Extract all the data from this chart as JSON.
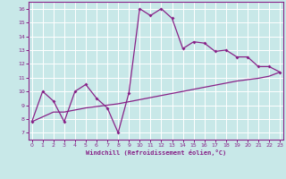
{
  "xlabel": "Windchill (Refroidissement éolien,°C)",
  "background_color": "#c8e8e8",
  "line_color": "#882288",
  "grid_color": "#ffffff",
  "x_data": [
    0,
    1,
    2,
    3,
    4,
    5,
    6,
    7,
    8,
    9,
    10,
    11,
    12,
    13,
    14,
    15,
    16,
    17,
    18,
    19,
    20,
    21,
    22,
    23
  ],
  "upper_line_y": [
    7.8,
    10.0,
    9.3,
    7.8,
    10.0,
    10.5,
    9.5,
    8.8,
    7.0,
    9.9,
    16.0,
    15.5,
    16.0,
    15.3,
    13.1,
    13.6,
    13.5,
    12.9,
    13.0,
    12.5,
    12.5,
    11.8,
    11.8,
    11.4
  ],
  "lower_line_y": [
    7.8,
    8.15,
    8.5,
    8.5,
    8.65,
    8.8,
    8.9,
    9.0,
    9.1,
    9.25,
    9.4,
    9.55,
    9.7,
    9.85,
    10.0,
    10.15,
    10.3,
    10.45,
    10.6,
    10.75,
    10.85,
    10.95,
    11.1,
    11.4
  ],
  "xlim": [
    -0.3,
    23.3
  ],
  "ylim": [
    6.5,
    16.5
  ],
  "yticks": [
    7,
    8,
    9,
    10,
    11,
    12,
    13,
    14,
    15,
    16
  ],
  "xticks": [
    0,
    1,
    2,
    3,
    4,
    5,
    6,
    7,
    8,
    9,
    10,
    11,
    12,
    13,
    14,
    15,
    16,
    17,
    18,
    19,
    20,
    21,
    22,
    23
  ]
}
